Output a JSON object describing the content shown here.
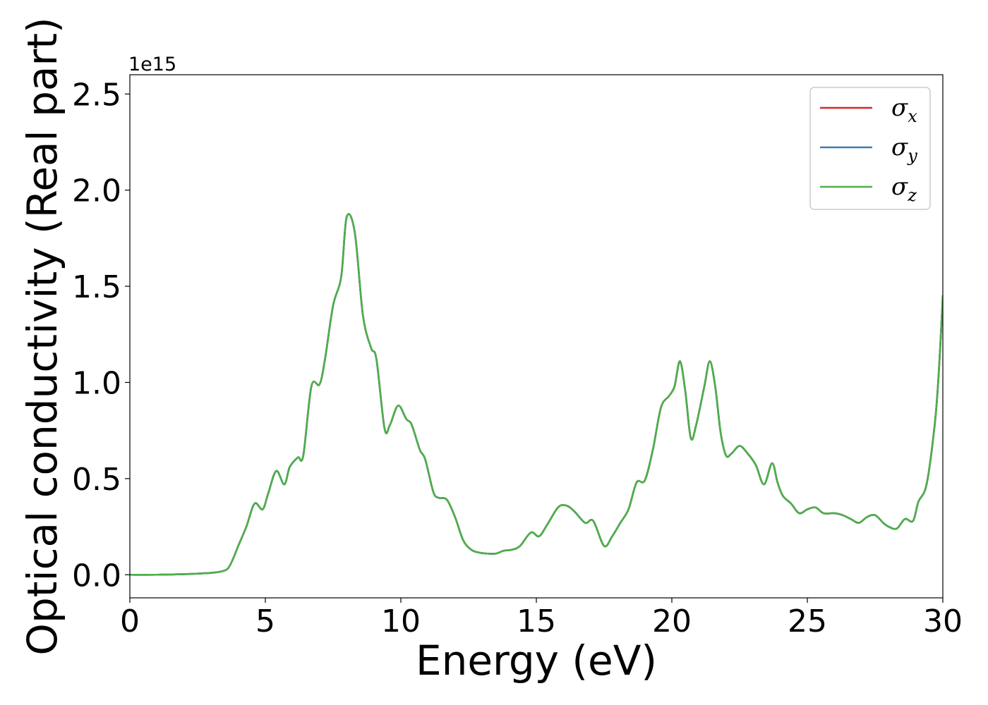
{
  "chart_data": {
    "type": "line",
    "title": "",
    "xlabel": "Energy (eV)",
    "ylabel": "Optical conductivity (Real part)",
    "y_offset_text": "1e15",
    "y_scale": 1000000000000000.0,
    "xlim": [
      0,
      30
    ],
    "ylim": [
      -0.12,
      2.6
    ],
    "x_ticks": [
      0,
      5,
      10,
      15,
      20,
      25,
      30
    ],
    "x_tick_labels": [
      "0",
      "5",
      "10",
      "15",
      "20",
      "25",
      "30"
    ],
    "y_ticks": [
      0.0,
      0.5,
      1.0,
      1.5,
      2.0,
      2.5
    ],
    "y_tick_labels": [
      "0.0",
      "0.5",
      "1.0",
      "1.5",
      "2.0",
      "2.5"
    ],
    "grid": false,
    "legend_position": "top-right",
    "x": [
      0,
      1,
      2,
      2.5,
      3,
      3.3,
      3.6,
      3.8,
      4.0,
      4.3,
      4.6,
      4.9,
      5.1,
      5.4,
      5.7,
      5.9,
      6.2,
      6.4,
      6.7,
      7.0,
      7.2,
      7.5,
      7.8,
      8.0,
      8.3,
      8.6,
      8.9,
      9.1,
      9.4,
      9.6,
      9.9,
      10.2,
      10.4,
      10.7,
      10.9,
      11.2,
      11.4,
      11.7,
      12.0,
      12.3,
      12.6,
      12.9,
      13.2,
      13.5,
      13.8,
      14.1,
      14.4,
      14.8,
      15.1,
      15.4,
      15.8,
      16.1,
      16.4,
      16.8,
      17.1,
      17.5,
      17.8,
      18.1,
      18.4,
      18.7,
      19.0,
      19.3,
      19.6,
      19.9,
      20.1,
      20.3,
      20.5,
      20.7,
      20.9,
      21.2,
      21.4,
      21.6,
      21.8,
      22.0,
      22.2,
      22.5,
      22.8,
      23.1,
      23.4,
      23.7,
      23.9,
      24.1,
      24.4,
      24.7,
      25.0,
      25.3,
      25.6,
      26.0,
      26.3,
      26.6,
      26.9,
      27.2,
      27.5,
      27.8,
      28.0,
      28.3,
      28.6,
      28.9,
      29.1,
      29.4,
      29.7,
      29.85,
      30.0
    ],
    "series": [
      {
        "name": "σ_x",
        "color": "#d62728",
        "y": [
          0.0,
          0.0,
          0.003,
          0.006,
          0.01,
          0.015,
          0.03,
          0.08,
          0.15,
          0.25,
          0.37,
          0.34,
          0.42,
          0.54,
          0.47,
          0.56,
          0.61,
          0.62,
          0.98,
          0.99,
          1.12,
          1.4,
          1.55,
          1.86,
          1.78,
          1.35,
          1.18,
          1.12,
          0.76,
          0.78,
          0.88,
          0.81,
          0.78,
          0.65,
          0.6,
          0.43,
          0.4,
          0.39,
          0.3,
          0.18,
          0.13,
          0.115,
          0.11,
          0.11,
          0.125,
          0.13,
          0.15,
          0.22,
          0.2,
          0.26,
          0.35,
          0.36,
          0.33,
          0.27,
          0.28,
          0.15,
          0.2,
          0.27,
          0.34,
          0.48,
          0.49,
          0.65,
          0.87,
          0.93,
          0.98,
          1.11,
          0.95,
          0.71,
          0.78,
          0.98,
          1.11,
          0.98,
          0.74,
          0.62,
          0.63,
          0.67,
          0.63,
          0.57,
          0.47,
          0.58,
          0.48,
          0.41,
          0.37,
          0.32,
          0.34,
          0.35,
          0.32,
          0.32,
          0.31,
          0.29,
          0.27,
          0.3,
          0.31,
          0.27,
          0.25,
          0.24,
          0.29,
          0.28,
          0.38,
          0.47,
          0.78,
          1.05,
          1.45
        ]
      },
      {
        "name": "σ_y",
        "color": "#3a7bb5",
        "y": [
          0.0,
          0.0,
          0.003,
          0.006,
          0.01,
          0.015,
          0.03,
          0.08,
          0.15,
          0.25,
          0.37,
          0.34,
          0.42,
          0.54,
          0.47,
          0.56,
          0.61,
          0.62,
          0.98,
          0.99,
          1.12,
          1.4,
          1.55,
          1.86,
          1.78,
          1.35,
          1.18,
          1.12,
          0.76,
          0.78,
          0.88,
          0.81,
          0.78,
          0.65,
          0.6,
          0.43,
          0.4,
          0.39,
          0.3,
          0.18,
          0.13,
          0.115,
          0.11,
          0.11,
          0.125,
          0.13,
          0.15,
          0.22,
          0.2,
          0.26,
          0.35,
          0.36,
          0.33,
          0.27,
          0.28,
          0.15,
          0.2,
          0.27,
          0.34,
          0.48,
          0.49,
          0.65,
          0.87,
          0.93,
          0.98,
          1.11,
          0.95,
          0.71,
          0.78,
          0.98,
          1.11,
          0.98,
          0.74,
          0.62,
          0.63,
          0.67,
          0.63,
          0.57,
          0.47,
          0.58,
          0.48,
          0.41,
          0.37,
          0.32,
          0.34,
          0.35,
          0.32,
          0.32,
          0.31,
          0.29,
          0.27,
          0.3,
          0.31,
          0.27,
          0.25,
          0.24,
          0.29,
          0.28,
          0.38,
          0.47,
          0.78,
          1.05,
          1.45
        ]
      },
      {
        "name": "σ_z",
        "color": "#4daf4a",
        "y": [
          0.0,
          0.0,
          0.003,
          0.006,
          0.01,
          0.015,
          0.03,
          0.08,
          0.15,
          0.25,
          0.37,
          0.34,
          0.42,
          0.54,
          0.47,
          0.56,
          0.61,
          0.62,
          0.98,
          0.99,
          1.12,
          1.4,
          1.55,
          1.86,
          1.78,
          1.35,
          1.18,
          1.12,
          0.76,
          0.78,
          0.88,
          0.81,
          0.78,
          0.65,
          0.6,
          0.43,
          0.4,
          0.39,
          0.3,
          0.18,
          0.13,
          0.115,
          0.11,
          0.11,
          0.125,
          0.13,
          0.15,
          0.22,
          0.2,
          0.26,
          0.35,
          0.36,
          0.33,
          0.27,
          0.28,
          0.15,
          0.2,
          0.27,
          0.34,
          0.48,
          0.49,
          0.65,
          0.87,
          0.93,
          0.98,
          1.11,
          0.95,
          0.71,
          0.78,
          0.98,
          1.11,
          0.98,
          0.74,
          0.62,
          0.63,
          0.67,
          0.63,
          0.57,
          0.47,
          0.58,
          0.48,
          0.41,
          0.37,
          0.32,
          0.34,
          0.35,
          0.32,
          0.32,
          0.31,
          0.29,
          0.27,
          0.3,
          0.31,
          0.27,
          0.25,
          0.24,
          0.29,
          0.28,
          0.38,
          0.47,
          0.78,
          1.05,
          1.45
        ]
      }
    ],
    "legend": [
      {
        "base": "σ",
        "sub": "x",
        "color": "#d62728"
      },
      {
        "base": "σ",
        "sub": "y",
        "color": "#3a7bb5"
      },
      {
        "base": "σ",
        "sub": "z",
        "color": "#4daf4a"
      }
    ]
  }
}
